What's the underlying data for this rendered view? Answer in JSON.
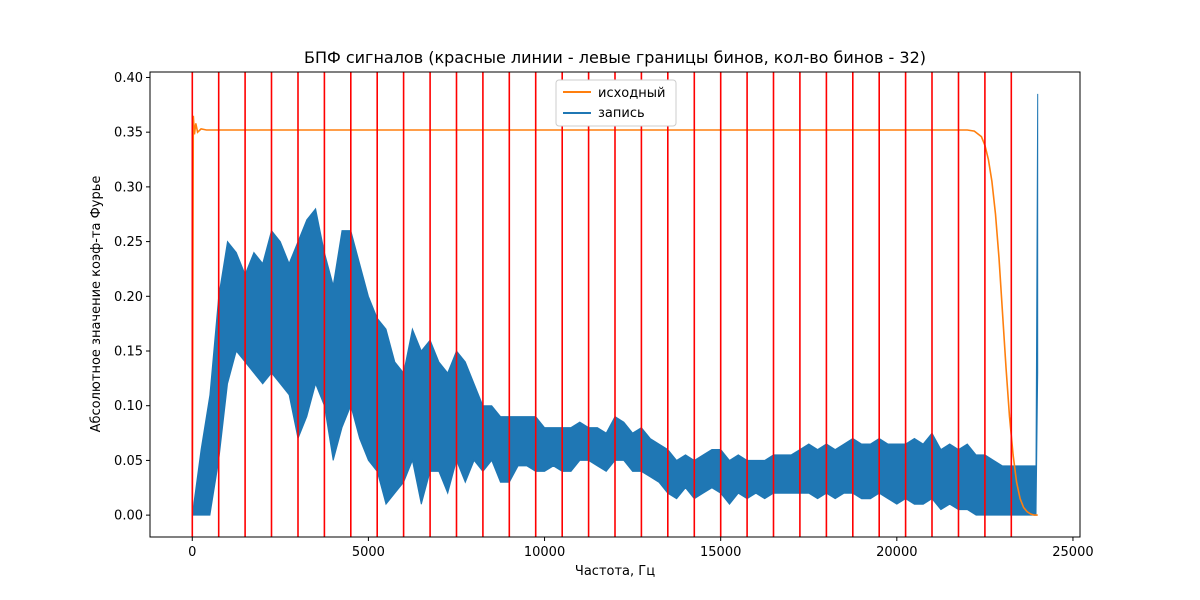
{
  "chart_data": {
    "type": "line",
    "title": "БПФ сигналов (красные линии - левые границы бинов, кол-во бинов - 32)",
    "xlabel": "Частота, Гц",
    "ylabel": "Абсолютное значение коэф-та Фурье",
    "xlim": [
      -1200,
      25200
    ],
    "ylim": [
      -0.02,
      0.405
    ],
    "xticks": [
      0,
      5000,
      10000,
      15000,
      20000,
      25000
    ],
    "xtick_labels": [
      "0",
      "5000",
      "10000",
      "15000",
      "20000",
      "25000"
    ],
    "yticks": [
      0.0,
      0.05,
      0.1,
      0.15,
      0.2,
      0.25,
      0.3,
      0.35,
      0.4
    ],
    "ytick_labels": [
      "0.00",
      "0.05",
      "0.10",
      "0.15",
      "0.20",
      "0.25",
      "0.30",
      "0.35",
      "0.40"
    ],
    "legend_position": "upper-center",
    "bin_edges": [
      0,
      750,
      1500,
      2250,
      3000,
      3750,
      4500,
      5250,
      6000,
      6750,
      7500,
      8250,
      9000,
      9750,
      10500,
      11250,
      12000,
      12750,
      13500,
      14250,
      15000,
      15750,
      16500,
      17250,
      18000,
      18750,
      19500,
      20250,
      21000,
      21750,
      22500,
      23250
    ],
    "bin_line_color": "#ff0000",
    "series": [
      {
        "name": "исходный",
        "color": "#ff7f0e",
        "x": [
          0,
          30,
          60,
          100,
          150,
          250,
          400,
          1000,
          5000,
          10000,
          15000,
          20000,
          22000,
          22200,
          22400,
          22500,
          22600,
          22700,
          22800,
          22900,
          23000,
          23100,
          23200,
          23300,
          23400,
          23500,
          23600,
          23700,
          23800,
          23900,
          24000
        ],
        "y": [
          0.0,
          0.365,
          0.348,
          0.358,
          0.35,
          0.353,
          0.352,
          0.352,
          0.352,
          0.352,
          0.352,
          0.352,
          0.352,
          0.351,
          0.346,
          0.338,
          0.325,
          0.305,
          0.275,
          0.235,
          0.185,
          0.135,
          0.09,
          0.055,
          0.03,
          0.015,
          0.007,
          0.003,
          0.001,
          0.0,
          0.0
        ]
      },
      {
        "name": "запись",
        "color": "#1f77b4",
        "render": "envelope",
        "x": [
          0,
          250,
          500,
          750,
          1000,
          1250,
          1500,
          1750,
          2000,
          2250,
          2500,
          2750,
          3000,
          3250,
          3500,
          3750,
          4000,
          4250,
          4500,
          4750,
          5000,
          5250,
          5500,
          5750,
          6000,
          6250,
          6500,
          6750,
          7000,
          7250,
          7500,
          7750,
          8000,
          8250,
          8500,
          8750,
          9000,
          9250,
          9500,
          9750,
          10000,
          10250,
          10500,
          10750,
          11000,
          11250,
          11500,
          11750,
          12000,
          12250,
          12500,
          12750,
          13000,
          13250,
          13500,
          13750,
          14000,
          14250,
          14500,
          14750,
          15000,
          15250,
          15500,
          15750,
          16000,
          16250,
          16500,
          16750,
          17000,
          17250,
          17500,
          17750,
          18000,
          18250,
          18500,
          18750,
          19000,
          19250,
          19500,
          19750,
          20000,
          20250,
          20500,
          20750,
          21000,
          21250,
          21500,
          21750,
          22000,
          22250,
          22500,
          22750,
          23000,
          23250,
          23500,
          23750,
          23950,
          24000
        ],
        "y_upper": [
          0.0,
          0.06,
          0.11,
          0.2,
          0.25,
          0.24,
          0.22,
          0.24,
          0.23,
          0.26,
          0.25,
          0.23,
          0.25,
          0.27,
          0.28,
          0.24,
          0.21,
          0.26,
          0.26,
          0.23,
          0.2,
          0.18,
          0.17,
          0.14,
          0.13,
          0.17,
          0.15,
          0.16,
          0.14,
          0.13,
          0.15,
          0.14,
          0.12,
          0.1,
          0.1,
          0.09,
          0.09,
          0.09,
          0.09,
          0.09,
          0.08,
          0.08,
          0.08,
          0.08,
          0.085,
          0.08,
          0.08,
          0.075,
          0.09,
          0.085,
          0.075,
          0.08,
          0.07,
          0.065,
          0.06,
          0.05,
          0.055,
          0.05,
          0.055,
          0.06,
          0.06,
          0.05,
          0.055,
          0.05,
          0.05,
          0.05,
          0.055,
          0.055,
          0.055,
          0.06,
          0.065,
          0.06,
          0.065,
          0.06,
          0.065,
          0.07,
          0.065,
          0.065,
          0.07,
          0.065,
          0.065,
          0.065,
          0.07,
          0.065,
          0.075,
          0.06,
          0.065,
          0.06,
          0.065,
          0.055,
          0.055,
          0.05,
          0.045,
          0.045,
          0.045,
          0.045,
          0.045,
          0.385
        ],
        "y_lower": [
          0.0,
          0.0,
          0.0,
          0.05,
          0.12,
          0.15,
          0.14,
          0.13,
          0.12,
          0.13,
          0.12,
          0.11,
          0.07,
          0.09,
          0.12,
          0.1,
          0.05,
          0.08,
          0.1,
          0.07,
          0.05,
          0.04,
          0.01,
          0.02,
          0.03,
          0.05,
          0.01,
          0.04,
          0.04,
          0.02,
          0.05,
          0.03,
          0.05,
          0.04,
          0.05,
          0.03,
          0.03,
          0.045,
          0.045,
          0.04,
          0.04,
          0.045,
          0.04,
          0.04,
          0.05,
          0.05,
          0.045,
          0.04,
          0.05,
          0.05,
          0.04,
          0.04,
          0.035,
          0.03,
          0.02,
          0.015,
          0.025,
          0.015,
          0.02,
          0.025,
          0.02,
          0.01,
          0.02,
          0.015,
          0.02,
          0.015,
          0.02,
          0.02,
          0.02,
          0.02,
          0.02,
          0.015,
          0.02,
          0.015,
          0.02,
          0.02,
          0.015,
          0.015,
          0.02,
          0.015,
          0.01,
          0.015,
          0.01,
          0.01,
          0.015,
          0.005,
          0.01,
          0.005,
          0.005,
          0.0,
          0.0,
          0.0,
          0.0,
          0.0,
          0.0,
          0.0,
          0.0,
          0.13
        ]
      }
    ]
  }
}
